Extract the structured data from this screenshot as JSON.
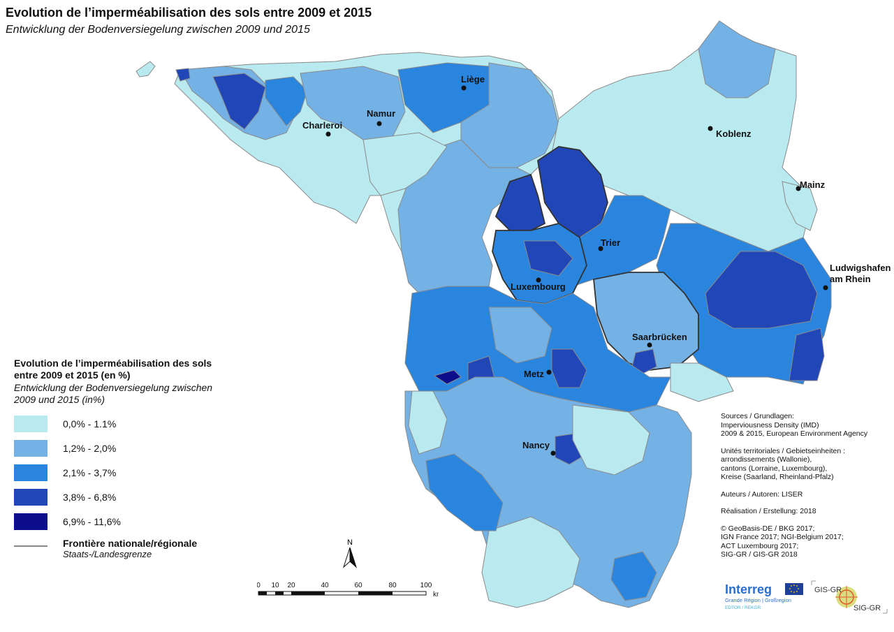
{
  "title": "Evolution de l’imperméabilisation des sols entre 2009 et 2015",
  "subtitle": "Entwicklung der Bodenversiegelung zwischen 2009 und 2015",
  "legend": {
    "title": "Evolution de l’imperméabilisation des sols entre 2009 et 2015 (en %)",
    "subtitle": "Entwicklung der Bodenversiegelung zwischen 2009 und 2015 (in%)",
    "classes": [
      {
        "label": "0,0% - 1.1%",
        "color": "#b9eaf0"
      },
      {
        "label": "1,2% - 2,0%",
        "color": "#74b1e5"
      },
      {
        "label": "2,1% - 3,7%",
        "color": "#2a85de"
      },
      {
        "label": "3,8% - 6,8%",
        "color": "#2146b8"
      },
      {
        "label": "6,9% - 11,6%",
        "color": "#0c0e8c"
      }
    ],
    "border_label": "Frontière nationale/régionale",
    "border_sub": "Staats-/Landesgrenze"
  },
  "cities": {
    "liege": "Liège",
    "namur": "Namur",
    "charleroi": "Charleroi",
    "koblenz": "Koblenz",
    "mainz": "Mainz",
    "trier": "Trier",
    "ludwigshafen_1": "Ludwigshafen",
    "ludwigshafen_2": "am Rhein",
    "luxembourg": "Luxembourg",
    "saarbrucken": "Saarbrücken",
    "metz": "Metz",
    "nancy": "Nancy"
  },
  "sources": {
    "l1": "Sources / Grundlagen:",
    "l2": "Imperviousness Density (IMD)",
    "l3": "2009 & 2015, European Environment Agency",
    "l4": "Unités territoriales / Gebietseinheiten :",
    "l5": "arrondissements (Wallonie),",
    "l6": "cantons (Lorraine, Luxembourg),",
    "l7": "Kreise (Saarland, Rheinland-Pfalz)",
    "l8": "Auteurs / Autoren: LISER",
    "l9": "Réalisation / Erstellung: 2018",
    "l10": "© GeoBasis-DE / BKG 2017;",
    "l11": "IGN France 2017; NGI-Belgium 2017;",
    "l12": "ACT Luxembourg 2017;",
    "l13": "SIG-GR / GIS-GR 2018"
  },
  "scale": {
    "ticks": [
      "0",
      "10",
      "20",
      "40",
      "60",
      "80",
      "100"
    ],
    "unit": "km"
  },
  "north_label": "N",
  "logos": {
    "interreg": "Interreg",
    "interreg_sub": "Grande Région | Großregion",
    "interreg_sub2": "EDTOR / REKGR",
    "gis_top": "GIS-GR",
    "gis_bottom": "SIG-GR"
  }
}
